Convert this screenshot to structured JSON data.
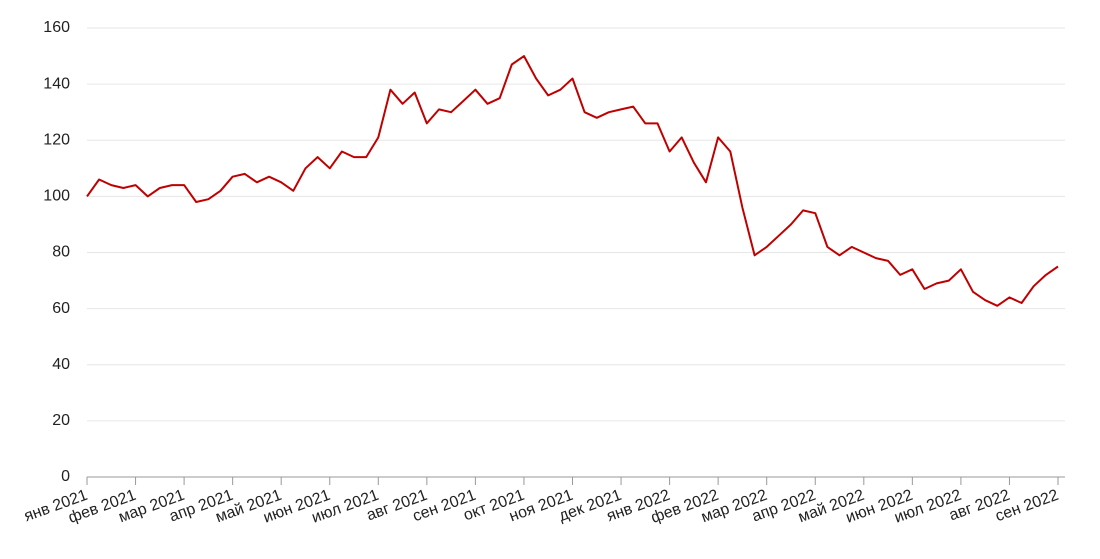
{
  "chart_data": {
    "type": "line",
    "categories": [
      "янв 2021",
      null,
      null,
      null,
      "фев 2021",
      null,
      null,
      null,
      "мар 2021",
      null,
      null,
      null,
      "апр 2021",
      null,
      null,
      null,
      "май 2021",
      null,
      null,
      null,
      "июн 2021",
      null,
      null,
      null,
      "июл 2021",
      null,
      null,
      null,
      "авг 2021",
      null,
      null,
      null,
      "сен 2021",
      null,
      null,
      null,
      "окт 2021",
      null,
      null,
      null,
      "ноя 2021",
      null,
      null,
      null,
      "дек 2021",
      null,
      null,
      null,
      "янв 2022",
      null,
      null,
      null,
      "фев 2022",
      null,
      null,
      null,
      "мар 2022",
      null,
      null,
      null,
      "апр 2022",
      null,
      null,
      null,
      "май 2022",
      null,
      null,
      null,
      "июн 2022",
      null,
      null,
      null,
      "июл 2022",
      null,
      null,
      null,
      "авг 2022",
      null,
      null,
      null,
      "сен 2022"
    ],
    "values": [
      100,
      106,
      104,
      103,
      104,
      100,
      103,
      104,
      104,
      98,
      99,
      102,
      107,
      108,
      105,
      107,
      105,
      102,
      110,
      114,
      110,
      116,
      114,
      114,
      121,
      138,
      133,
      137,
      126,
      131,
      130,
      134,
      138,
      133,
      135,
      147,
      150,
      142,
      136,
      138,
      142,
      130,
      128,
      130,
      131,
      132,
      126,
      126,
      116,
      121,
      112,
      105,
      121,
      116,
      96,
      79,
      82,
      86,
      90,
      95,
      94,
      82,
      79,
      82,
      80,
      78,
      77,
      72,
      74,
      67,
      69,
      70,
      74,
      66,
      63,
      61,
      64,
      62,
      68,
      72,
      75
    ],
    "color": "#c00000",
    "ylim": [
      0,
      160
    ],
    "yticks": [
      0,
      20,
      40,
      60,
      80,
      100,
      120,
      140,
      160
    ],
    "grid": true
  }
}
